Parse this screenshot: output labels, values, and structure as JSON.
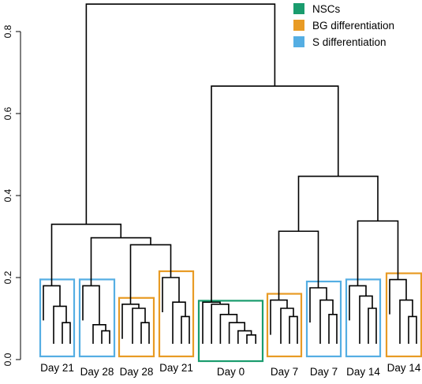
{
  "chart_data": {
    "type": "dendrogram",
    "title": "",
    "xlabel": "",
    "ylabel": "",
    "ylim": [
      0,
      0.9
    ],
    "y_ticks": [
      "0.0",
      "0.2",
      "0.4",
      "0.6",
      "0.8"
    ],
    "legend": {
      "placement": "top-right",
      "items": [
        {
          "name": "NSCs",
          "color": "#1a9c6e"
        },
        {
          "name": "BG differentiation",
          "color": "#e89b25"
        },
        {
          "name": "S differentiation",
          "color": "#55aee3"
        }
      ]
    },
    "groups": [
      {
        "label": "Day 21",
        "type": "S differentiation",
        "color": "#55aee3",
        "heights": {
          "n1": 0.18,
          "n2": 0.13,
          "n3": 0.09
        }
      },
      {
        "label": "Day 28",
        "type": "S differentiation",
        "color": "#55aee3",
        "heights": {
          "n1": 0.18,
          "n2": 0.085,
          "n3": 0.07
        }
      },
      {
        "label": "Day 28",
        "type": "BG differentiation",
        "color": "#e89b25",
        "heights": {
          "n1": 0.135,
          "n2": 0.125,
          "n3": 0.09
        }
      },
      {
        "label": "Day 21",
        "type": "BG differentiation",
        "color": "#e89b25",
        "heights": {
          "n1": 0.2,
          "n2": 0.14,
          "n3": 0.105
        }
      },
      {
        "label": "Day 0",
        "type": "NSCs",
        "color": "#1a9c6e"
      },
      {
        "label": "Day 7",
        "type": "BG differentiation",
        "color": "#e89b25",
        "heights": {
          "n1": 0.145,
          "n2": 0.125,
          "n3": 0.105
        }
      },
      {
        "label": "Day 7",
        "type": "S differentiation",
        "color": "#55aee3",
        "heights": {
          "n1": 0.175,
          "n2": 0.145,
          "n3": 0.11
        }
      },
      {
        "label": "Day 14",
        "type": "S differentiation",
        "color": "#55aee3",
        "heights": {
          "n1": 0.18,
          "n2": 0.155,
          "n3": 0.125
        }
      },
      {
        "label": "Day 14",
        "type": "BG differentiation",
        "color": "#e89b25",
        "heights": {
          "n1": 0.195,
          "n2": 0.145,
          "n3": 0.105
        }
      }
    ],
    "day0_heights": [
      0.14,
      0.135,
      0.11,
      0.09,
      0.07,
      0.06
    ],
    "merges": {
      "left_inner": 0.28,
      "left_mid": 0.297,
      "left_top": 0.33,
      "right_a": 0.313,
      "right_b": 0.338,
      "right_top": 0.447,
      "center": 0.667,
      "root": 0.867
    }
  }
}
